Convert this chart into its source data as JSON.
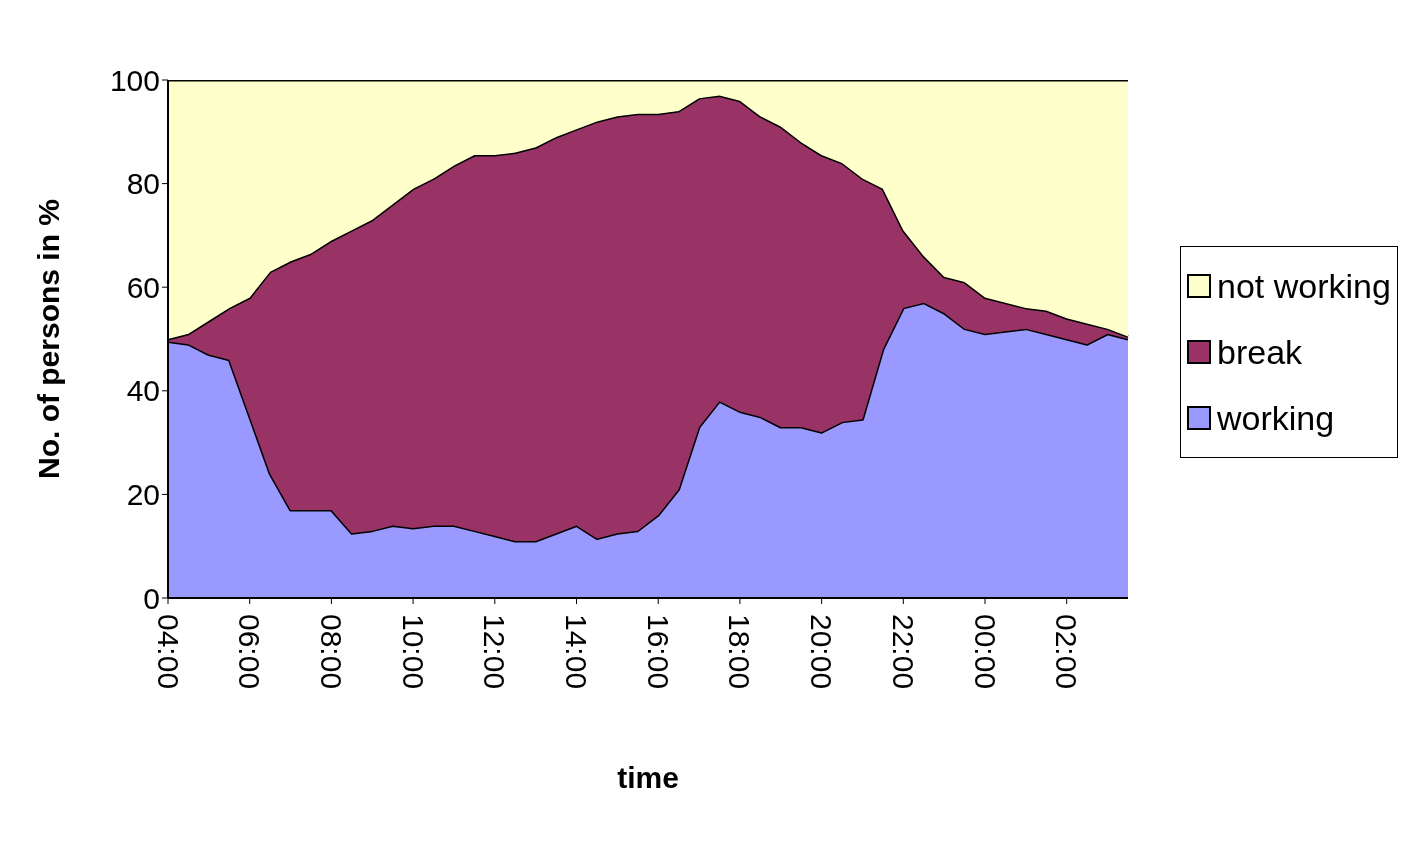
{
  "chart_data": {
    "type": "area",
    "stacked": true,
    "xlabel": "time",
    "ylabel": "No. of persons in %",
    "categories": [
      "04:00",
      null,
      null,
      null,
      "06:00",
      null,
      null,
      null,
      "08:00",
      null,
      null,
      null,
      "10:00",
      null,
      null,
      null,
      "12:00",
      null,
      null,
      null,
      "14:00",
      null,
      null,
      null,
      "16:00",
      null,
      null,
      null,
      "18:00",
      null,
      null,
      null,
      "20:00",
      null,
      null,
      null,
      "22:00",
      null,
      null,
      null,
      "00:00",
      null,
      null,
      null,
      "02:00",
      null,
      null,
      null
    ],
    "series": [
      {
        "name": "working",
        "color": "#9999ff",
        "values": [
          49.5,
          49,
          47,
          46,
          35,
          24,
          17,
          17,
          17,
          12.5,
          13,
          14,
          13.5,
          14,
          14,
          13,
          12,
          11,
          11,
          12.5,
          14,
          11.5,
          12.5,
          13,
          16,
          21,
          33,
          38,
          36,
          35,
          33,
          33,
          32,
          34,
          34.5,
          48,
          56,
          57,
          55,
          52,
          51,
          51.5,
          52,
          51,
          50,
          49,
          51,
          50
        ]
      },
      {
        "name": "break",
        "color": "#993366",
        "values": [
          0.5,
          2,
          6.5,
          10,
          23,
          39,
          48,
          49.5,
          52,
          58.5,
          60,
          62,
          65.5,
          67,
          69.5,
          72.5,
          73.5,
          75,
          76,
          76.5,
          76.5,
          80.5,
          80.5,
          80.5,
          77.5,
          73,
          63.5,
          59,
          60,
          58,
          58,
          55,
          53.5,
          50,
          46.5,
          31,
          15,
          9,
          7,
          9,
          7,
          5.5,
          4,
          4.5,
          4,
          4,
          1,
          0.5
        ]
      },
      {
        "name": "not working",
        "color": "#ffffcc",
        "values": [
          50,
          49,
          46.5,
          44,
          42,
          37,
          35,
          33.5,
          31,
          29,
          27,
          24,
          21,
          19,
          16.5,
          14.5,
          14.5,
          14,
          13,
          11,
          9.5,
          8,
          7,
          6.5,
          6.5,
          6,
          3.5,
          3,
          4,
          7,
          9,
          12,
          14.5,
          16,
          19,
          21,
          29,
          34,
          38,
          39,
          42,
          43,
          44,
          44.5,
          46,
          47,
          48,
          49.5
        ]
      }
    ],
    "ylim": [
      0,
      100
    ],
    "yticks": [
      0,
      20,
      40,
      60,
      80,
      100
    ],
    "grid": false,
    "legend": "right",
    "marker": "none",
    "line_style": "solid"
  }
}
